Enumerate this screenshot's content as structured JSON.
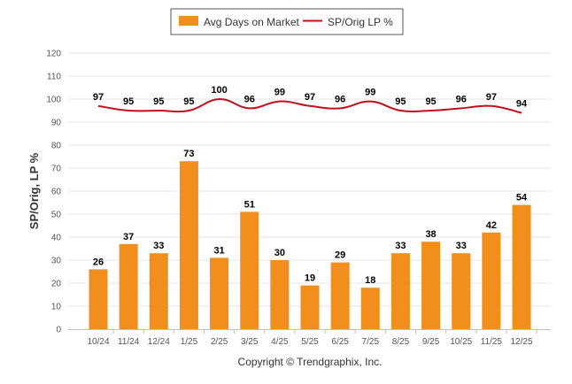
{
  "chart_data": {
    "type": "bar+line",
    "categories": [
      "10/24",
      "11/24",
      "12/24",
      "1/25",
      "2/25",
      "3/25",
      "4/25",
      "5/25",
      "6/25",
      "7/25",
      "8/25",
      "9/25",
      "10/25",
      "11/25",
      "12/25"
    ],
    "series": [
      {
        "name": "Avg Days on Market",
        "kind": "bar",
        "values": [
          26,
          37,
          33,
          73,
          31,
          51,
          30,
          19,
          29,
          18,
          33,
          38,
          33,
          42,
          54
        ]
      },
      {
        "name": "SP/Orig LP %",
        "kind": "line",
        "values": [
          97,
          95,
          95,
          95,
          100,
          96,
          99,
          97,
          96,
          99,
          95,
          95,
          96,
          97,
          94
        ]
      }
    ],
    "ylabel": "SP/Orig, LP %",
    "yticks": [
      0,
      10,
      20,
      30,
      40,
      50,
      60,
      70,
      80,
      90,
      100,
      110,
      120
    ],
    "ylim": [
      0,
      120
    ],
    "grid": true,
    "legend_position": "top-center",
    "colors": {
      "bar": "#f28e1c",
      "line": "#c0101a",
      "grid": "#e6e6e6"
    }
  },
  "footer": "Copyright © Trendgraphix, Inc."
}
